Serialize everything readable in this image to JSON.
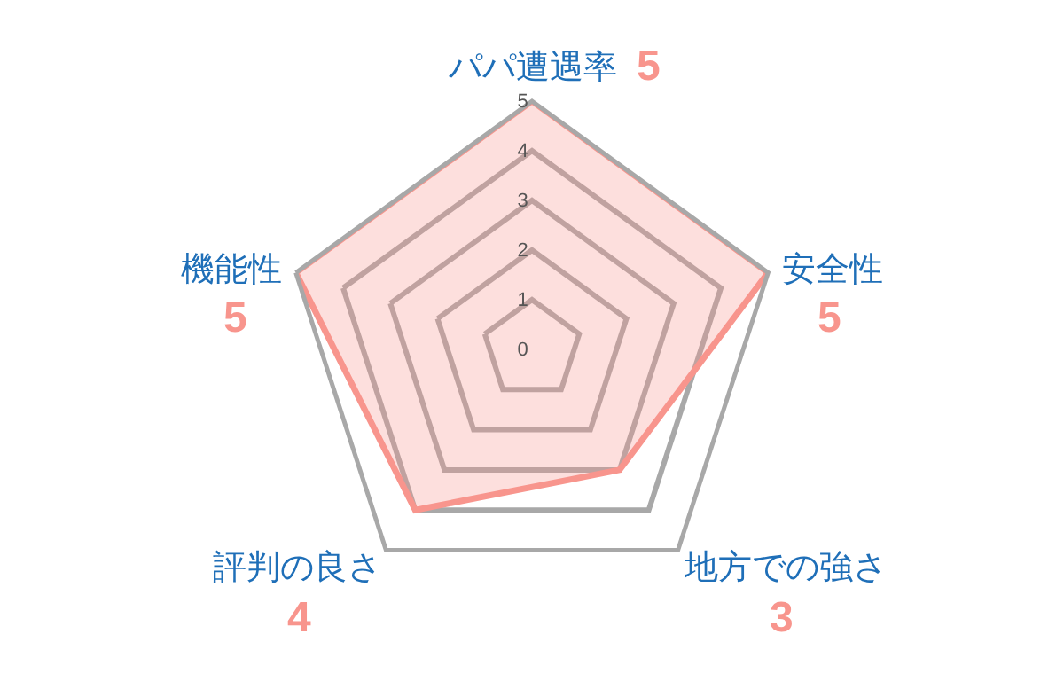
{
  "chart_data": {
    "type": "radar",
    "categories": [
      "パパ遭遇率",
      "安全性",
      "地方での強さ",
      "評判の良さ",
      "機能性"
    ],
    "series": [
      {
        "color": "#f8958d",
        "values": [
          5,
          5,
          3,
          4,
          5
        ]
      }
    ],
    "annotations": [
      "5",
      "5",
      "3",
      "4",
      "5"
    ],
    "ylim": [
      0,
      5
    ],
    "yticks": [
      0,
      1,
      2,
      3,
      4,
      5
    ],
    "grid": true
  }
}
